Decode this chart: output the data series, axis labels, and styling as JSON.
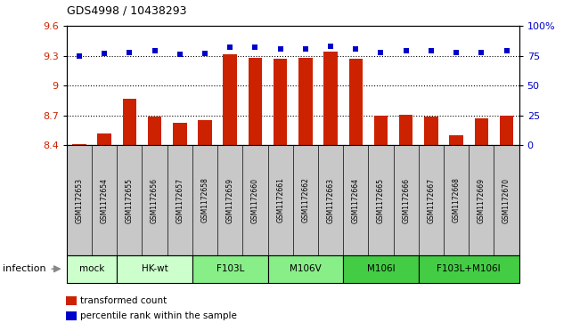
{
  "title": "GDS4998 / 10438293",
  "samples": [
    "GSM1172653",
    "GSM1172654",
    "GSM1172655",
    "GSM1172656",
    "GSM1172657",
    "GSM1172658",
    "GSM1172659",
    "GSM1172660",
    "GSM1172661",
    "GSM1172662",
    "GSM1172663",
    "GSM1172664",
    "GSM1172665",
    "GSM1172666",
    "GSM1172667",
    "GSM1172668",
    "GSM1172669",
    "GSM1172670"
  ],
  "bar_values": [
    8.41,
    8.52,
    8.87,
    8.69,
    8.63,
    8.65,
    9.31,
    9.28,
    9.27,
    9.28,
    9.34,
    9.27,
    8.7,
    8.71,
    8.69,
    8.5,
    8.67,
    8.7
  ],
  "dot_values": [
    75,
    77,
    78,
    79,
    76,
    77,
    82,
    82,
    81,
    81,
    83,
    81,
    78,
    79,
    79,
    78,
    78,
    79
  ],
  "ylim_left": [
    8.4,
    9.6
  ],
  "ylim_right": [
    0,
    100
  ],
  "yticks_left": [
    8.4,
    8.7,
    9.0,
    9.3,
    9.6
  ],
  "ytick_labels_left": [
    "8.4",
    "8.7",
    "9",
    "9.3",
    "9.6"
  ],
  "yticks_right": [
    0,
    25,
    50,
    75,
    100
  ],
  "ytick_labels_right": [
    "0",
    "25",
    "50",
    "75",
    "100%"
  ],
  "bar_color": "#cc2200",
  "dot_color": "#0000cc",
  "bar_base": 8.4,
  "groups": [
    {
      "label": "mock",
      "start": 0,
      "end": 2,
      "color": "#ccffcc"
    },
    {
      "label": "HK-wt",
      "start": 2,
      "end": 5,
      "color": "#ccffcc"
    },
    {
      "label": "F103L",
      "start": 5,
      "end": 8,
      "color": "#88ee88"
    },
    {
      "label": "M106V",
      "start": 8,
      "end": 11,
      "color": "#88ee88"
    },
    {
      "label": "M106I",
      "start": 11,
      "end": 14,
      "color": "#44cc44"
    },
    {
      "label": "F103L+M106I",
      "start": 14,
      "end": 18,
      "color": "#44cc44"
    }
  ],
  "infection_label": "infection",
  "legend_bar_label": "transformed count",
  "legend_dot_label": "percentile rank within the sample",
  "grid_lines": [
    8.7,
    9.0,
    9.3
  ],
  "xtick_gray": "#c8c8c8"
}
